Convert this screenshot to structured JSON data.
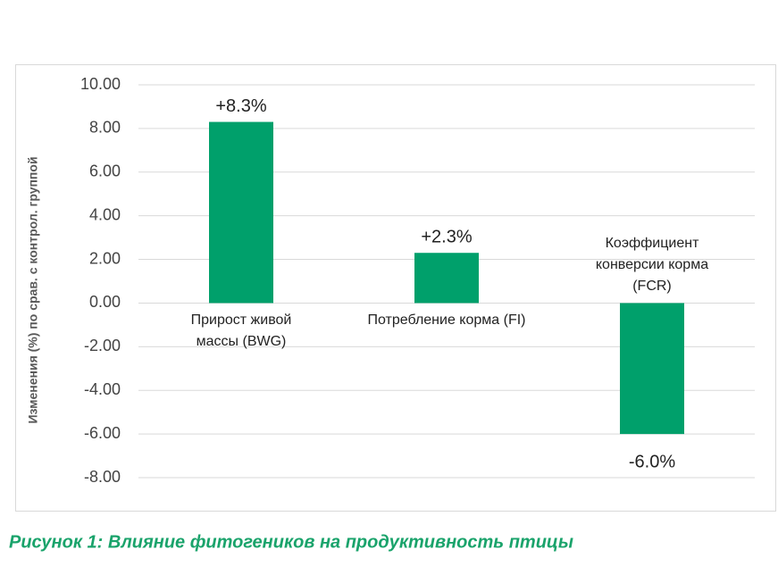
{
  "chart_data": {
    "type": "bar",
    "title": "Рисунок 1: Влияние фитогеников на продуктивность птицы",
    "y_label": "Изменения (%) по срав. с контрол. группой",
    "categories": [
      "Прирост живой массы (BWG)",
      "Потребление корма (FI)",
      "Коэффициент конверсии корма (FCR)"
    ],
    "values": [
      8.3,
      2.3,
      -6.0
    ],
    "value_labels": [
      "+8.3%",
      "+2.3%",
      "-6.0%"
    ],
    "color": "#00a06b",
    "ylim": [
      -8,
      10
    ],
    "yticks": [
      {
        "value": -8,
        "label": "-8.00"
      },
      {
        "value": -6,
        "label": "-6.00"
      },
      {
        "value": -4,
        "label": "-4.00"
      },
      {
        "value": -2,
        "label": "-2.00"
      },
      {
        "value": 0,
        "label": "0.00"
      },
      {
        "value": 2,
        "label": "2.00"
      },
      {
        "value": 4,
        "label": "4.00"
      },
      {
        "value": 6,
        "label": "6.00"
      },
      {
        "value": 8,
        "label": "8.00"
      },
      {
        "value": 10,
        "label": "10.00"
      }
    ],
    "grid": true
  }
}
